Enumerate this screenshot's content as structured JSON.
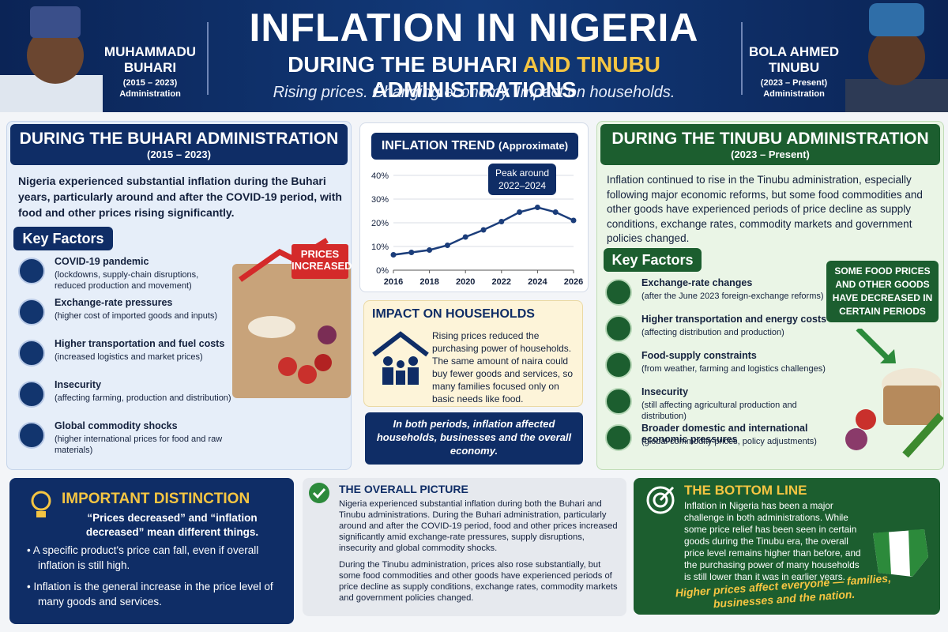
{
  "header": {
    "title": "INFLATION IN NIGERIA",
    "subtitle_a": "DURING THE BUHARI",
    "subtitle_b": "AND TINUBU",
    "subtitle_c": "ADMINISTRATIONS",
    "tagline": "Rising prices. Changing economy. Impact on households.",
    "left_leader": {
      "name": "MUHAMMADU BUHARI",
      "years": "(2015 – 2023)",
      "role": "Administration"
    },
    "right_leader": {
      "name": "BOLA AHMED TINUBU",
      "years": "(2023 – Present)",
      "role": "Administration"
    }
  },
  "buhari": {
    "title": "DURING THE BUHARI ADMINISTRATION",
    "years": "(2015 – 2023)",
    "intro": "Nigeria experienced substantial inflation during the Buhari years, particularly around and after the COVID-19 period, with food and other prices rising significantly.",
    "factors_title": "Key Factors",
    "badge": "PRICES INCREASED",
    "factors": [
      {
        "title": "COVID-19 pandemic",
        "detail": "(lockdowns, supply-chain disruptions, reduced production and movement)"
      },
      {
        "title": "Exchange-rate pressures",
        "detail": "(higher cost of imported goods and inputs)"
      },
      {
        "title": "Higher transportation and fuel costs",
        "detail": "(increased logistics and market prices)"
      },
      {
        "title": "Insecurity",
        "detail": "(affecting farming, production and distribution)"
      },
      {
        "title": "Global commodity shocks",
        "detail": "(higher international prices for food and raw materials)"
      }
    ]
  },
  "chart_data": {
    "type": "line",
    "title": "INFLATION TREND",
    "title_note": "(Approximate)",
    "annotation": "Peak around 2022–2024",
    "x": [
      2016,
      2017,
      2018,
      2019,
      2020,
      2021,
      2022,
      2023,
      2024,
      2025,
      2026
    ],
    "values": [
      6.5,
      7.5,
      8.5,
      10.5,
      14,
      17,
      20.5,
      24.5,
      26.5,
      24.5,
      21
    ],
    "color": "#1b3d7a",
    "xlim": [
      2016,
      2026
    ],
    "xticks": [
      2016,
      2018,
      2020,
      2022,
      2024,
      2026
    ],
    "ylim": [
      0,
      40
    ],
    "yticks": [
      {
        "value": 0,
        "label": "0%"
      },
      {
        "value": 10,
        "label": "10%"
      },
      {
        "value": 20,
        "label": "20%"
      },
      {
        "value": 30,
        "label": "30%"
      },
      {
        "value": 40,
        "label": "40%"
      }
    ],
    "grid": true
  },
  "impact": {
    "title": "IMPACT ON HOUSEHOLDS",
    "text": "Rising prices reduced the purchasing power of households. The same amount of naira could buy fewer goods and services, so many families focused only on basic needs like food."
  },
  "both_periods": "In both periods, inflation affected households, businesses and the overall economy.",
  "tinubu": {
    "title": "DURING THE TINUBU ADMINISTRATION",
    "years": "(2023 – Present)",
    "intro": "Inflation continued to rise in the Tinubu administration, especially following major economic reforms, but some food commodities and other goods have experienced periods of price decline as supply conditions, exchange rates, commodity markets and government policies changed.",
    "factors_title": "Key Factors",
    "badge": "SOME FOOD PRICES AND OTHER GOODS HAVE DECREASED IN CERTAIN PERIODS",
    "factors": [
      {
        "title": "Exchange-rate changes",
        "detail": "(after the June 2023 foreign-exchange reforms)"
      },
      {
        "title": "Higher transportation and energy costs",
        "detail": "(affecting distribution and production)"
      },
      {
        "title": "Food-supply constraints",
        "detail": "(from weather, farming and logistics challenges)"
      },
      {
        "title": "Insecurity",
        "detail": "(still affecting agricultural production and distribution)"
      },
      {
        "title": "Broader domestic and international economic pressures",
        "detail": "(global commodity prices, policy adjustments)"
      }
    ]
  },
  "distinction": {
    "title": "IMPORTANT DISTINCTION",
    "lead": "“Prices decreased” and “inflation decreased” mean different things.",
    "bullets": [
      "A specific product's price can fall, even if overall inflation is still high.",
      "Inflation is the general increase in the price level of many goods and services."
    ]
  },
  "overall": {
    "title": "THE OVERALL PICTURE",
    "paragraphs": [
      "Nigeria experienced substantial inflation during both the Buhari and Tinubu administrations. During the Buhari administration, particularly around and after the COVID-19 period, food and other prices increased significantly amid exchange-rate pressures, supply disruptions, insecurity and global commodity shocks.",
      "During the Tinubu administration, prices also rose substantially, but some food commodities and other goods have experienced periods of price decline as supply conditions, exchange rates, commodity markets and government policies changed."
    ]
  },
  "bottom_line": {
    "title": "THE BOTTOM LINE",
    "text": "Inflation in Nigeria has been a major challenge in both administrations. While some price relief has been seen in certain goods during the Tinubu era, the overall price level remains higher than before, and the purchasing power of many households is still lower than it was in earlier years.",
    "slogan": "Higher prices affect everyone — families, businesses and the nation."
  }
}
